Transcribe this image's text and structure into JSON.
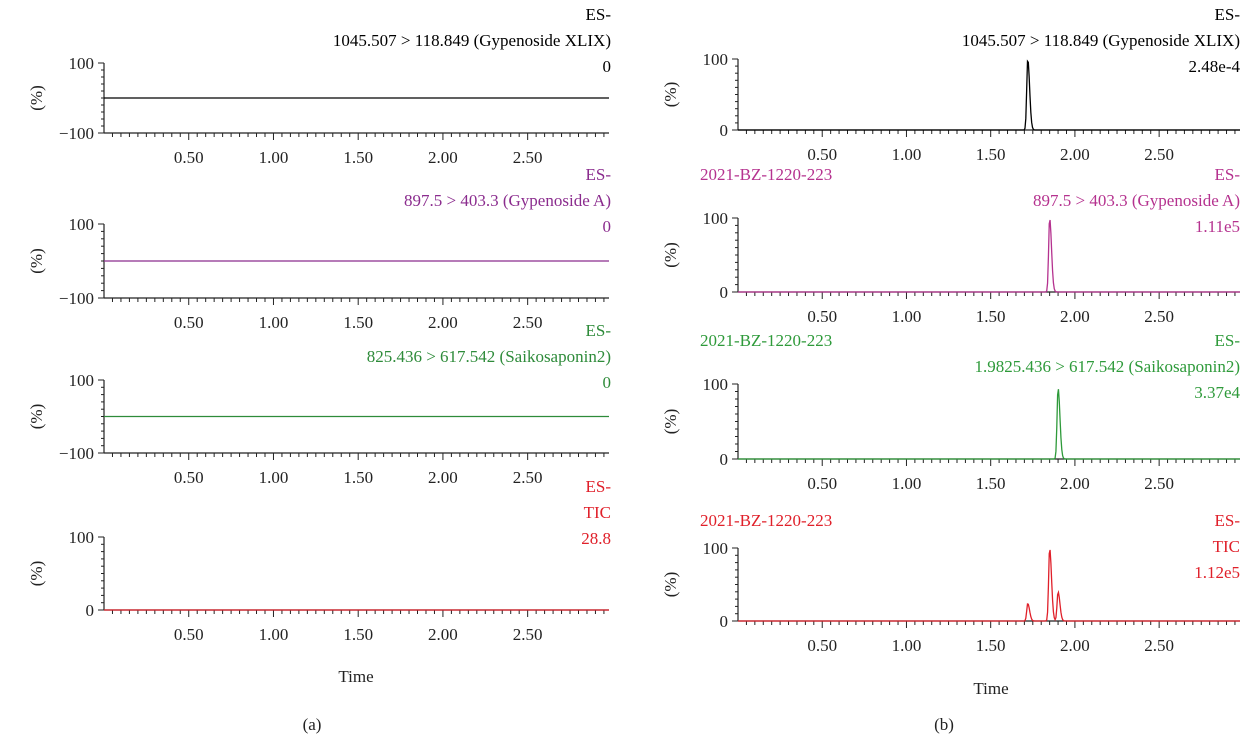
{
  "figure": {
    "xlabel": "Time",
    "panel_labels": [
      "(a)",
      "(b)"
    ]
  },
  "chart_data": [
    {
      "type": "line",
      "panel": "a",
      "color": "#000000",
      "header": [
        "ES-",
        "1045.507 > 118.849 (Gypenoside XLIX)",
        "0"
      ],
      "sample": "",
      "ylabel": "(%)",
      "ylim": [
        -100,
        100
      ],
      "yticks": [
        "100",
        "−100"
      ],
      "xlim": [
        0,
        2.98
      ],
      "xticks": [
        "0.50",
        "1.00",
        "1.50",
        "2.00",
        "2.50"
      ],
      "baseline": 0,
      "peaks": []
    },
    {
      "type": "line",
      "panel": "a",
      "color": "#8B2C8E",
      "header": [
        "ES-",
        "897.5 > 403.3 (Gypenoside A)",
        "0"
      ],
      "sample": "",
      "ylabel": "(%)",
      "ylim": [
        -100,
        100
      ],
      "yticks": [
        "100",
        "−100"
      ],
      "xlim": [
        0,
        2.98
      ],
      "xticks": [
        "0.50",
        "1.00",
        "1.50",
        "2.00",
        "2.50"
      ],
      "baseline": 0,
      "peaks": []
    },
    {
      "type": "line",
      "panel": "a",
      "color": "#2E8B3A",
      "header": [
        "ES-",
        "825.436 > 617.542 (Saikosaponin2)",
        "0"
      ],
      "sample": "",
      "ylabel": "(%)",
      "ylim": [
        -100,
        100
      ],
      "yticks": [
        "100",
        "−100"
      ],
      "xlim": [
        0,
        2.98
      ],
      "xticks": [
        "0.50",
        "1.00",
        "1.50",
        "2.00",
        "2.50"
      ],
      "baseline": 0,
      "peaks": []
    },
    {
      "type": "line",
      "panel": "a",
      "color": "#E0202A",
      "header": [
        "ES-",
        "TIC",
        "28.8"
      ],
      "sample": "",
      "ylabel": "(%)",
      "ylim": [
        0,
        100
      ],
      "yticks": [
        "100",
        "0"
      ],
      "xlim": [
        0,
        2.98
      ],
      "xticks": [
        "0.50",
        "1.00",
        "1.50",
        "2.00",
        "2.50"
      ],
      "baseline": 0,
      "peaks": []
    },
    {
      "type": "line",
      "panel": "b",
      "color": "#000000",
      "header": [
        "ES-",
        "1045.507 > 118.849 (Gypenoside XLIX)",
        "2.48e-4"
      ],
      "sample": "",
      "ylabel": "(%)",
      "ylim": [
        0,
        100
      ],
      "yticks": [
        "100",
        "0"
      ],
      "xlim": [
        0,
        2.98
      ],
      "xticks": [
        "0.50",
        "1.00",
        "1.50",
        "2.00",
        "2.50"
      ],
      "baseline": 0,
      "peaks": [
        {
          "rt": 1.72,
          "height": 100
        }
      ]
    },
    {
      "type": "line",
      "panel": "b",
      "color": "#B5328F",
      "header": [
        "ES-",
        "897.5 > 403.3 (Gypenoside A)",
        "1.11e5"
      ],
      "sample": "2021-BZ-1220-223",
      "ylabel": "(%)",
      "ylim": [
        0,
        100
      ],
      "yticks": [
        "100",
        "0"
      ],
      "xlim": [
        0,
        2.98
      ],
      "xticks": [
        "0.50",
        "1.00",
        "1.50",
        "2.00",
        "2.50"
      ],
      "baseline": 0,
      "peaks": [
        {
          "rt": 1.85,
          "height": 100
        }
      ]
    },
    {
      "type": "line",
      "panel": "b",
      "color": "#2E9A3A",
      "header": [
        "ES-",
        "1.9825.436 > 617.542 (Saikosaponin2)",
        "3.37e4"
      ],
      "sample": "2021-BZ-1220-223",
      "ylabel": "(%)",
      "ylim": [
        0,
        100
      ],
      "yticks": [
        "100",
        "0"
      ],
      "xlim": [
        0,
        2.98
      ],
      "xticks": [
        "0.50",
        "1.00",
        "1.50",
        "2.00",
        "2.50"
      ],
      "baseline": 0,
      "peaks": [
        {
          "rt": 1.9,
          "height": 95
        }
      ]
    },
    {
      "type": "line",
      "panel": "b",
      "color": "#E0202A",
      "header": [
        "ES-",
        "TIC",
        "1.12e5"
      ],
      "sample": "2021-BZ-1220-223",
      "ylabel": "(%)",
      "ylim": [
        0,
        100
      ],
      "yticks": [
        "100",
        "0"
      ],
      "xlim": [
        0,
        2.98
      ],
      "xticks": [
        "0.50",
        "1.00",
        "1.50",
        "2.00",
        "2.50"
      ],
      "baseline": 0,
      "peaks": [
        {
          "rt": 1.72,
          "height": 24
        },
        {
          "rt": 1.85,
          "height": 100
        },
        {
          "rt": 1.9,
          "height": 40
        }
      ]
    }
  ]
}
